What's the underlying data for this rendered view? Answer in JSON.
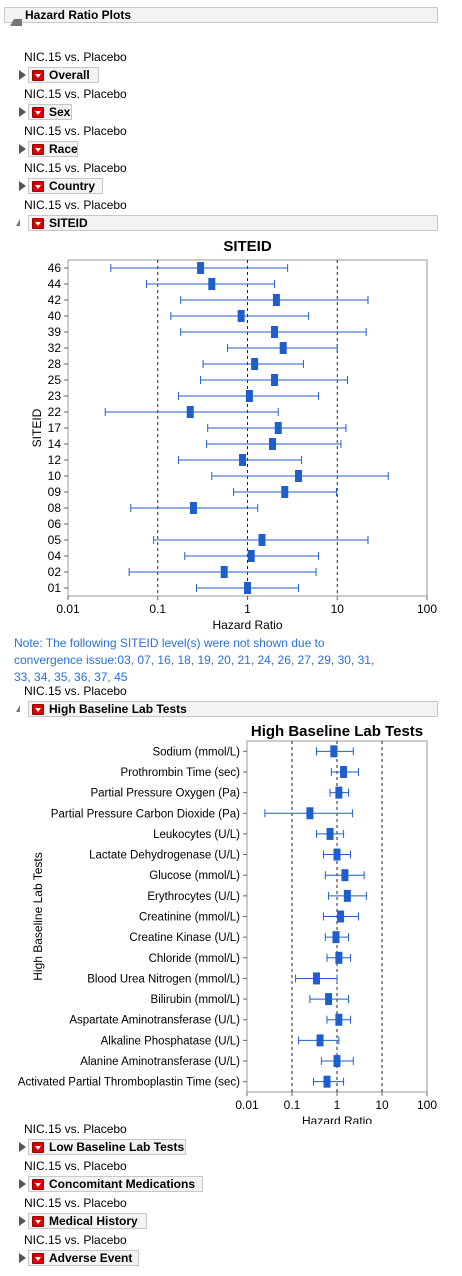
{
  "header": {
    "title": "Hazard Ratio Plots"
  },
  "comparison": "NIC.15 vs. Placebo",
  "sections": {
    "overall": "Overall",
    "sex": "Sex",
    "race": "Race",
    "country": "Country",
    "siteid": "SITEID",
    "lab": "High Baseline Lab Tests",
    "low_lab": "Low Baseline Lab Tests",
    "conmed": "Concomitant Medications",
    "medhist": "Medical History",
    "ae": "Adverse Event"
  },
  "note": "Note: The following SITEID level(s) were not shown due to convergence issue:03, 07, 16, 18, 19, 20, 21, 24, 26, 27, 29, 30, 31, 33, 34, 35, 36, 37, 45",
  "colors": {
    "accent": "#1f5fcc",
    "note": "#2a6fdb",
    "menu": "#d80000"
  },
  "chart_data": [
    {
      "type": "scatter",
      "title": "SITEID",
      "xlabel": "Hazard Ratio",
      "ylabel": "SITEID",
      "xscale": "log",
      "xlim": [
        0.01,
        100
      ],
      "xticks": [
        "0.01",
        "0.1",
        "1",
        "10",
        "100"
      ],
      "reference_lines": [
        0.1,
        1,
        10
      ],
      "categories": [
        "46",
        "44",
        "42",
        "40",
        "39",
        "32",
        "28",
        "25",
        "23",
        "22",
        "17",
        "14",
        "12",
        "10",
        "09",
        "08",
        "06",
        "05",
        "04",
        "02",
        "01"
      ],
      "estimate": [
        0.3,
        0.4,
        2.1,
        0.85,
        2.0,
        2.5,
        1.2,
        2.0,
        1.05,
        0.23,
        2.2,
        1.9,
        0.88,
        3.7,
        2.6,
        0.25,
        null,
        1.45,
        1.1,
        0.55,
        1.0
      ],
      "lower": [
        0.03,
        0.075,
        0.18,
        0.14,
        0.18,
        0.6,
        0.32,
        0.3,
        0.17,
        0.026,
        0.36,
        0.35,
        0.17,
        0.4,
        0.7,
        0.05,
        null,
        0.09,
        0.2,
        0.048,
        0.27
      ],
      "upper": [
        2.8,
        2.0,
        22,
        4.8,
        21,
        10,
        4.2,
        13,
        6.2,
        2.2,
        12.5,
        11,
        4.0,
        37,
        9.8,
        1.3,
        null,
        22,
        6.2,
        5.8,
        3.7
      ]
    },
    {
      "type": "scatter",
      "title": "High Baseline Lab Tests",
      "xlabel": "Hazard Ratio",
      "ylabel": "High Baseline Lab Tests",
      "xscale": "log",
      "xlim": [
        0.01,
        100
      ],
      "xticks": [
        "0.01",
        "0.1",
        "1",
        "10",
        "100"
      ],
      "reference_lines": [
        0.1,
        1,
        10
      ],
      "categories": [
        "Sodium (mmol/L)",
        "Prothrombin Time (sec)",
        "Partial Pressure Oxygen (Pa)",
        "Partial Pressure Carbon Dioxide (Pa)",
        "Leukocytes (U/L)",
        "Lactate Dehydrogenase (U/L)",
        "Glucose (mmol/L)",
        "Erythrocytes (U/L)",
        "Creatinine (mmol/L)",
        "Creatine Kinase (U/L)",
        "Chloride (mmol/L)",
        "Blood Urea Nitrogen (mmol/L)",
        "Bilirubin (mmol/L)",
        "Aspartate Aminotransferase (U/L)",
        "Alkaline Phosphatase (U/L)",
        "Alanine Aminotransferase (U/L)",
        "Activated Partial Thromboplastin Time (sec)"
      ],
      "estimate": [
        0.85,
        1.4,
        1.1,
        0.25,
        0.7,
        1.0,
        1.5,
        1.7,
        1.2,
        0.95,
        1.1,
        0.35,
        0.65,
        1.1,
        0.42,
        1.0,
        0.6
      ],
      "lower": [
        0.35,
        0.75,
        0.7,
        0.025,
        0.35,
        0.5,
        0.55,
        0.65,
        0.5,
        0.55,
        0.6,
        0.12,
        0.25,
        0.6,
        0.14,
        0.45,
        0.3
      ],
      "upper": [
        2.3,
        3.0,
        1.8,
        2.2,
        1.4,
        2.0,
        4.0,
        4.5,
        3.0,
        1.8,
        2.0,
        1.0,
        1.8,
        2.0,
        1.1,
        2.3,
        1.4
      ]
    }
  ]
}
